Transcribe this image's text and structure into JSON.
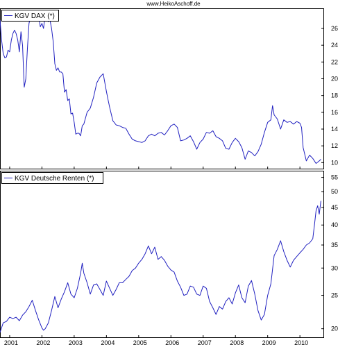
{
  "source": "www.HeikoAschoff.de",
  "colors": {
    "line": "#2020c0",
    "frame": "#000000",
    "background": "#ffffff"
  },
  "chart_data": [
    {
      "type": "line",
      "title": "",
      "legend": "top-left",
      "grid": false,
      "xlabel": "",
      "ylabel": "",
      "x_ticks": [
        "2001",
        "2002",
        "2003",
        "2004",
        "2005",
        "2006",
        "2007",
        "2008",
        "2009",
        "2010"
      ],
      "xlim": [
        2000.7,
        2010.75
      ],
      "ylim": [
        9.2,
        28.4
      ],
      "y_ticks": [
        10,
        12,
        14,
        16,
        18,
        20,
        22,
        24,
        26
      ],
      "y_scale": "linear",
      "series": [
        {
          "name": "KGV DAX (*)",
          "x": [
            2000.7,
            2000.75,
            2000.8,
            2000.85,
            2000.9,
            2000.95,
            2001.0,
            2001.05,
            2001.1,
            2001.15,
            2001.2,
            2001.25,
            2001.3,
            2001.35,
            2001.4,
            2001.45,
            2001.5,
            2001.55,
            2001.6,
            2001.65,
            2001.7,
            2001.75,
            2001.8,
            2001.85,
            2001.9,
            2001.95,
            2002.0,
            2002.05,
            2002.1,
            2002.15,
            2002.2,
            2002.25,
            2002.3,
            2002.35,
            2002.4,
            2002.45,
            2002.5,
            2002.55,
            2002.6,
            2002.65,
            2002.7,
            2002.75,
            2002.8,
            2002.85,
            2002.9,
            2002.95,
            2003.0,
            2003.05,
            2003.1,
            2003.15,
            2003.2,
            2003.25,
            2003.3,
            2003.4,
            2003.5,
            2003.6,
            2003.7,
            2003.8,
            2003.9,
            2004.0,
            2004.05,
            2004.1,
            2004.15,
            2004.2,
            2004.3,
            2004.4,
            2004.5,
            2004.6,
            2004.7,
            2004.8,
            2004.9,
            2005.0,
            2005.1,
            2005.2,
            2005.3,
            2005.4,
            2005.5,
            2005.6,
            2005.7,
            2005.8,
            2005.9,
            2006.0,
            2006.1,
            2006.2,
            2006.3,
            2006.4,
            2006.5,
            2006.6,
            2006.7,
            2006.8,
            2006.9,
            2007.0,
            2007.1,
            2007.2,
            2007.3,
            2007.4,
            2007.5,
            2007.6,
            2007.7,
            2007.8,
            2007.9,
            2008.0,
            2008.1,
            2008.2,
            2008.3,
            2008.4,
            2008.5,
            2008.6,
            2008.7,
            2008.8,
            2008.9,
            2009.0,
            2009.1,
            2009.15,
            2009.2,
            2009.3,
            2009.4,
            2009.5,
            2009.6,
            2009.7,
            2009.8,
            2009.9,
            2010.0,
            2010.05,
            2010.1,
            2010.2,
            2010.3,
            2010.4,
            2010.5,
            2010.6,
            2010.65
          ],
          "values": [
            27.0,
            24.6,
            23.0,
            22.5,
            22.6,
            23.4,
            23.2,
            24.6,
            25.4,
            25.8,
            25.4,
            24.6,
            23.2,
            25.6,
            24.0,
            19.0,
            20.0,
            23.6,
            26.6,
            27.4,
            26.9,
            27.2,
            27.4,
            27.3,
            27.4,
            26.2,
            26.6,
            26.0,
            27.6,
            27.0,
            26.8,
            27.0,
            26.0,
            24.4,
            21.8,
            21.0,
            21.3,
            20.8,
            20.8,
            20.6,
            18.4,
            18.7,
            17.4,
            17.6,
            15.8,
            15.9,
            14.8,
            13.4,
            13.5,
            13.5,
            13.2,
            14.4,
            14.6,
            16.0,
            16.5,
            17.8,
            19.5,
            20.2,
            20.6,
            18.5,
            17.5,
            16.6,
            15.8,
            15.0,
            14.5,
            14.4,
            14.2,
            14.1,
            13.4,
            12.8,
            12.6,
            12.5,
            12.4,
            12.6,
            13.2,
            13.4,
            13.2,
            13.5,
            13.6,
            13.3,
            13.8,
            14.4,
            14.6,
            14.2,
            12.6,
            12.7,
            12.9,
            13.2,
            12.5,
            11.6,
            12.4,
            12.8,
            13.6,
            13.5,
            13.8,
            13.1,
            12.9,
            12.6,
            11.7,
            11.6,
            12.4,
            12.9,
            12.5,
            11.8,
            10.4,
            11.4,
            11.2,
            10.8,
            11.3,
            12.2,
            13.6,
            14.8,
            15.1,
            16.8,
            15.7,
            15.2,
            14.0,
            15.1,
            14.8,
            14.9,
            14.6,
            14.9,
            14.7,
            14.2,
            11.8,
            10.2,
            10.9,
            10.5,
            9.9,
            10.2,
            10.4
          ]
        }
      ]
    },
    {
      "type": "line",
      "title": "",
      "legend": "top-left",
      "grid": false,
      "xlabel": "",
      "ylabel": "",
      "x_ticks": [
        "2001",
        "2002",
        "2003",
        "2004",
        "2005",
        "2006",
        "2007",
        "2008",
        "2009",
        "2010"
      ],
      "xlim": [
        2000.7,
        2010.75
      ],
      "ylim": [
        18.8,
        57.5
      ],
      "y_ticks": [
        20,
        25,
        30,
        35,
        40,
        45,
        50,
        55
      ],
      "y_scale": "log",
      "series": [
        {
          "name": "KGV Deutsche Renten (*)",
          "x": [
            2000.7,
            2000.8,
            2000.9,
            2001.0,
            2001.1,
            2001.2,
            2001.3,
            2001.4,
            2001.5,
            2001.6,
            2001.7,
            2001.8,
            2001.9,
            2002.0,
            2002.05,
            2002.1,
            2002.2,
            2002.3,
            2002.4,
            2002.5,
            2002.6,
            2002.7,
            2002.8,
            2002.9,
            2003.0,
            2003.1,
            2003.2,
            2003.25,
            2003.3,
            2003.4,
            2003.5,
            2003.6,
            2003.7,
            2003.8,
            2003.9,
            2004.0,
            2004.1,
            2004.2,
            2004.3,
            2004.4,
            2004.5,
            2004.6,
            2004.7,
            2004.8,
            2004.9,
            2005.0,
            2005.1,
            2005.2,
            2005.3,
            2005.4,
            2005.5,
            2005.6,
            2005.7,
            2005.8,
            2005.9,
            2006.0,
            2006.1,
            2006.2,
            2006.3,
            2006.4,
            2006.5,
            2006.6,
            2006.7,
            2006.8,
            2006.9,
            2007.0,
            2007.1,
            2007.2,
            2007.3,
            2007.4,
            2007.5,
            2007.6,
            2007.7,
            2007.8,
            2007.9,
            2008.0,
            2008.1,
            2008.2,
            2008.3,
            2008.4,
            2008.5,
            2008.6,
            2008.7,
            2008.8,
            2008.9,
            2009.0,
            2009.1,
            2009.2,
            2009.3,
            2009.4,
            2009.5,
            2009.6,
            2009.7,
            2009.8,
            2009.9,
            2010.0,
            2010.1,
            2010.2,
            2010.3,
            2010.4,
            2010.45,
            2010.5,
            2010.55,
            2010.6,
            2010.65
          ],
          "values": [
            19.5,
            20.8,
            21.0,
            21.6,
            21.4,
            21.6,
            21.1,
            21.9,
            22.4,
            23.2,
            24.2,
            22.6,
            21.2,
            20.1,
            19.8,
            20.0,
            20.8,
            22.6,
            24.8,
            23.0,
            24.4,
            25.6,
            27.2,
            25.2,
            24.6,
            26.2,
            29.0,
            31.0,
            29.0,
            27.2,
            25.2,
            26.8,
            27.0,
            26.0,
            25.0,
            27.5,
            26.2,
            25.0,
            26.0,
            27.2,
            27.2,
            27.8,
            28.4,
            29.5,
            30.0,
            31.0,
            31.8,
            33.0,
            34.8,
            33.0,
            34.5,
            31.8,
            32.4,
            31.6,
            30.4,
            29.6,
            29.2,
            27.5,
            26.4,
            25.0,
            25.2,
            26.6,
            26.4,
            25.2,
            25.0,
            26.6,
            26.2,
            24.0,
            23.0,
            22.0,
            23.2,
            22.8,
            24.0,
            24.6,
            23.6,
            25.4,
            26.8,
            24.6,
            23.8,
            26.6,
            27.6,
            25.2,
            22.6,
            21.2,
            22.0,
            25.0,
            27.0,
            32.6,
            34.0,
            36.0,
            33.5,
            31.6,
            30.2,
            31.6,
            32.4,
            33.2,
            34.0,
            35.0,
            35.5,
            36.5,
            40.0,
            44.0,
            45.5,
            43.0,
            47.0
          ]
        }
      ]
    }
  ]
}
